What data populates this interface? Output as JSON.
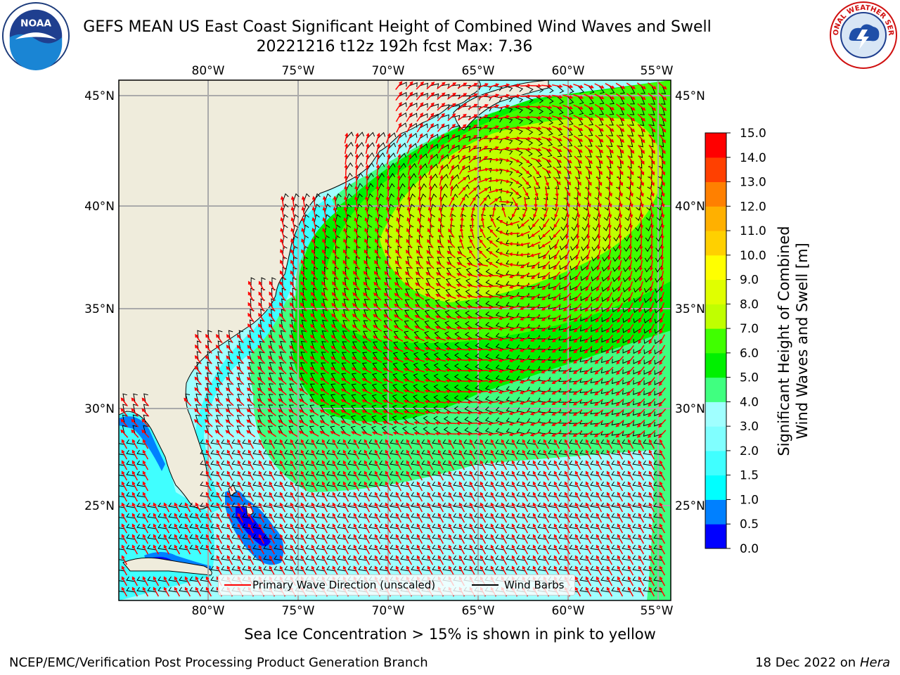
{
  "title": {
    "line1": "GEFS MEAN US East Coast Significant Height of Combined Wind Waves and Swell",
    "line2": "20221216 t12z 192h fcst   Max: 7.36"
  },
  "map": {
    "lon_labels": [
      "80°W",
      "75°W",
      "70°W",
      "65°W",
      "60°W",
      "55°W"
    ],
    "lat_labels": [
      "45°N",
      "40°N",
      "35°N",
      "30°N",
      "25°N"
    ],
    "extent": {
      "lon": [
        -85,
        -54.5
      ],
      "lat": [
        20.5,
        46
      ]
    },
    "land_color": "#efecdc",
    "grid": true
  },
  "legend": {
    "wave_label": "Primary Wave Direction (unscaled)",
    "wind_label": "Wind Barbs",
    "wave_color": "#ff0000",
    "wind_color": "#000000"
  },
  "colorbar": {
    "title_line1": "Significant Height of Combined",
    "title_line2": "Wind Waves and Swell [m]",
    "ticks": [
      "0.0",
      "0.5",
      "1.0",
      "1.5",
      "2.0",
      "3.0",
      "4.0",
      "5.0",
      "6.0",
      "7.0",
      "8.0",
      "9.0",
      "10.0",
      "11.0",
      "12.0",
      "13.0",
      "14.0",
      "15.0"
    ],
    "colors": [
      "#0000ff",
      "#0080ff",
      "#00ffff",
      "#40ffff",
      "#80ffff",
      "#a0ffff",
      "#40ff80",
      "#00f000",
      "#40ff00",
      "#c0ff00",
      "#e0ff00",
      "#ffff00",
      "#ffd000",
      "#ffb000",
      "#ff8000",
      "#ff4000",
      "#ff0000"
    ]
  },
  "caption": "Sea Ice Concentration > 15% is shown in pink to yellow",
  "footer": {
    "credit": "NCEP/EMC/Verification Post Processing Product Generation Branch",
    "date": "18 Dec 2022 on",
    "host": "Hera"
  },
  "logos": {
    "noaa_text": "NOAA",
    "nws_text": "NATIONAL WEATHER SERVICE"
  }
}
